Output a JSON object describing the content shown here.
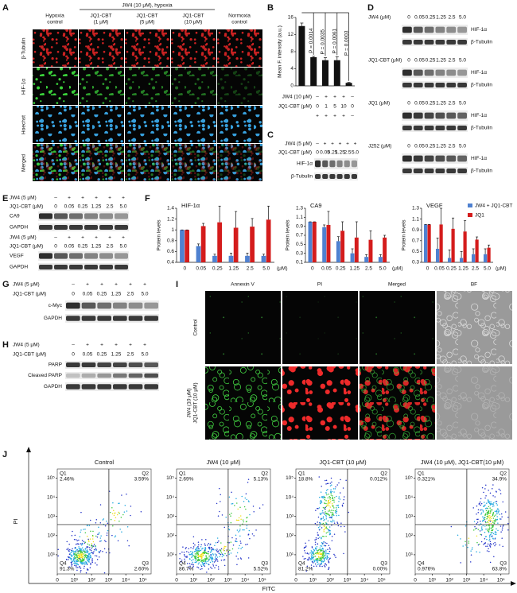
{
  "A": {
    "label": "A",
    "header": "JW4 (10 μM), hypoxia",
    "columns": [
      [
        "Hypoxia",
        "control"
      ],
      [
        "JQ1-CBT",
        "(1 μM)"
      ],
      [
        "JQ1-CBT",
        "(5 μM)"
      ],
      [
        "JQ1-CBT",
        "(10 μM)"
      ],
      [
        "Normoxia",
        "control"
      ]
    ],
    "rows": [
      "β-Tubulin",
      "HIF-1α",
      "Hoechst",
      "Merged"
    ]
  },
  "B": {
    "label": "B",
    "type": "bar",
    "ylabel": "Mean F. intensity (a.u.)",
    "ylim": [
      0,
      16
    ],
    "yticks": [
      0,
      4,
      8,
      12,
      16
    ],
    "values": [
      14,
      6.7,
      6,
      6,
      0.7
    ],
    "errors": [
      0.7,
      0.2,
      0.6,
      0.8,
      0.1
    ],
    "color": "#111111",
    "p_values": [
      "P = 0.0014",
      "P = 0.0035",
      "P = 0.0061",
      "P = 0.0003"
    ],
    "conditions": [
      {
        "name": "JW4 (10 μM)",
        "levels": [
          "–",
          "+",
          "+",
          "+",
          "–"
        ]
      },
      {
        "name": "JQ1-CBT (μM)",
        "levels": [
          "0",
          "1",
          "5",
          "10",
          "0"
        ]
      },
      {
        "levels": [
          "+",
          "+",
          "+",
          "+",
          "–"
        ]
      }
    ]
  },
  "C": {
    "label": "C",
    "treatments": [
      {
        "name": "JW4 (5 μM)",
        "levels": [
          "–",
          "+",
          "+",
          "+",
          "+",
          "+"
        ]
      },
      {
        "name": "JQ1-CBT (μM)",
        "levels": [
          "0",
          "0.05",
          "0.25",
          "1.25",
          "2.5",
          "5.0"
        ]
      }
    ],
    "bands": [
      "HIF-1α",
      "β-Tubulin"
    ]
  },
  "D": {
    "label": "D",
    "groups": [
      {
        "treatment": {
          "name": "JW4 (μM)",
          "levels": [
            "0",
            "0.05",
            "0.25",
            "1.25",
            "2.5",
            "5.0"
          ]
        },
        "bands": [
          "HIF-1α",
          "β-Tubulin"
        ]
      },
      {
        "treatment": {
          "name": "JQ1-CBT (μM)",
          "levels": [
            "0",
            "0.05",
            "0.25",
            "1.25",
            "2.5",
            "5.0"
          ]
        },
        "bands": [
          "HIF-1α",
          "β-Tubulin"
        ]
      },
      {
        "treatment": {
          "name": "JQ1 (μM)",
          "levels": [
            "0",
            "0.05",
            "0.25",
            "1.25",
            "2.5",
            "5.0"
          ]
        },
        "bands": [
          "HIF-1α",
          "β-Tubulin"
        ]
      },
      {
        "treatment": {
          "name": "J252 (μM)",
          "levels": [
            "0",
            "0.05",
            "0.25",
            "1.25",
            "2.5",
            "5.0"
          ]
        },
        "bands": [
          "HIF-1α",
          "β-Tubulin"
        ]
      }
    ]
  },
  "E": {
    "label": "E",
    "groups": [
      {
        "treatments": [
          {
            "name": "JW4 (5 μM)",
            "levels": [
              "–",
              "+",
              "+",
              "+",
              "+",
              "+"
            ]
          },
          {
            "name": "JQ1-CBT (μM)",
            "levels": [
              "0",
              "0.05",
              "0.25",
              "1.25",
              "2.5",
              "5.0"
            ]
          }
        ],
        "bands": [
          "CA9",
          "GAPDH"
        ]
      },
      {
        "treatments": [
          {
            "name": "JW4 (5 μM)",
            "levels": [
              "–",
              "+",
              "+",
              "+",
              "+",
              "+"
            ]
          },
          {
            "name": "JQ1-CBT (μM)",
            "levels": [
              "0",
              "0.05",
              "0.25",
              "1.25",
              "2.5",
              "5.0"
            ]
          }
        ],
        "bands": [
          "VEGF",
          "GAPDH"
        ]
      }
    ]
  },
  "F": {
    "label": "F",
    "type": "bar",
    "ylabel": "Protein levels",
    "categories": [
      "0",
      "0.05",
      "0.25",
      "1.25",
      "2.5",
      "5.0"
    ],
    "xunit": "(μM)",
    "series": [
      {
        "name": "JW4 + JQ1-CBT",
        "color": "#4f81d0"
      },
      {
        "name": "JQ1",
        "color": "#d41c1c"
      }
    ],
    "charts": [
      {
        "title": "HIF-1α",
        "ylim": [
          0.4,
          1.4
        ],
        "yticks": [
          0.4,
          0.6,
          0.8,
          1,
          1.2,
          1.4
        ],
        "values": [
          [
            1,
            0.7,
            0.52,
            0.52,
            0.52,
            0.52
          ],
          [
            1,
            1.07,
            1.14,
            1.04,
            1.06,
            1.19
          ]
        ],
        "errors": [
          [
            0,
            0.04,
            0.03,
            0.05,
            0.05,
            0.03
          ],
          [
            0,
            0.05,
            0.3,
            0.3,
            0.15,
            0.25
          ]
        ]
      },
      {
        "title": "CA9",
        "ylim": [
          0.1,
          1.3
        ],
        "yticks": [
          0.1,
          0.3,
          0.5,
          0.7,
          0.9,
          1.1,
          1.3
        ],
        "values": [
          [
            1,
            0.88,
            0.57,
            0.3,
            0.22,
            0.22
          ],
          [
            1,
            0.93,
            0.8,
            0.65,
            0.6,
            0.65
          ]
        ],
        "errors": [
          [
            0,
            0.05,
            0.1,
            0.1,
            0.05,
            0.05
          ],
          [
            0,
            0.3,
            0.2,
            0.35,
            0.2,
            0.05
          ]
        ]
      },
      {
        "title": "VEGF",
        "ylim": [
          0.3,
          1.3
        ],
        "yticks": [
          0.3,
          0.5,
          0.7,
          0.9,
          1.1,
          1.3
        ],
        "values": [
          [
            1,
            0.55,
            0.38,
            0.38,
            0.45,
            0.45
          ],
          [
            1,
            1.0,
            0.92,
            0.87,
            0.72,
            0.57
          ]
        ],
        "errors": [
          [
            0,
            0.2,
            0.15,
            0.12,
            0.1,
            0.1
          ],
          [
            0,
            0.3,
            0.2,
            0.2,
            0.05,
            0.05
          ]
        ]
      }
    ]
  },
  "G": {
    "label": "G",
    "treatments": [
      {
        "name": "JW4 (5 μM)",
        "levels": [
          "–",
          "+",
          "+",
          "+",
          "+",
          "+"
        ]
      },
      {
        "name": "JQ1-CBT (μM)",
        "levels": [
          "0",
          "0.05",
          "0.25",
          "1.25",
          "2.5",
          "5.0"
        ]
      }
    ],
    "bands": [
      "c-Myc",
      "GAPDH"
    ]
  },
  "H": {
    "label": "H",
    "treatments": [
      {
        "name": "JW4 (5 μM)",
        "levels": [
          "–",
          "+",
          "+",
          "+",
          "+",
          "+"
        ]
      },
      {
        "name": "JQ1-CBT (μM)",
        "levels": [
          "0",
          "0.05",
          "0.25",
          "1.25",
          "2.5",
          "5.0"
        ]
      }
    ],
    "bands": [
      "PARP",
      "Cleaved PARP",
      "GAPDH"
    ]
  },
  "I": {
    "label": "I",
    "columns": [
      "Annexin V",
      "PI",
      "Merged",
      "BF"
    ],
    "rows": [
      [
        "Control"
      ],
      [
        "JW4 (10 μM)",
        "JQ1-CBT (10 μM)"
      ]
    ]
  },
  "J": {
    "label": "J",
    "xlabel": "FITC",
    "ylabel": "PI",
    "log": true,
    "xlim": [
      1,
      300000
    ],
    "ylim": [
      1,
      300000
    ],
    "xticks": [
      0,
      {
        "value": 10,
        "label": "10¹"
      },
      {
        "value": 100,
        "label": "10²"
      },
      {
        "value": 1000,
        "label": "10³"
      },
      {
        "value": 10000,
        "label": "10⁴"
      },
      {
        "value": 100000,
        "label": "10⁵"
      }
    ],
    "yticks": [
      {
        "value": 10,
        "label": "10¹"
      },
      {
        "value": 100,
        "label": "10²"
      },
      {
        "value": 1000,
        "label": "10³"
      },
      {
        "value": 10000,
        "label": "10⁴"
      },
      {
        "value": 100000,
        "label": "10⁵"
      }
    ],
    "plots": [
      {
        "title": "Control",
        "quadrants": [
          {
            "name": "Q1",
            "value": "2.46%"
          },
          {
            "name": "Q2",
            "value": "3.59%"
          },
          {
            "name": "Q3",
            "value": "2.60%"
          },
          {
            "name": "Q4",
            "value": "91.3%"
          }
        ]
      },
      {
        "title": "JW4  (10 μM)",
        "quadrants": [
          {
            "name": "Q1",
            "value": "2.69%"
          },
          {
            "name": "Q2",
            "value": "5.13%"
          },
          {
            "name": "Q3",
            "value": "5.52%"
          },
          {
            "name": "Q4",
            "value": "86.7%"
          }
        ]
      },
      {
        "title": "JQ1-CBT (10 μM)",
        "quadrants": [
          {
            "name": "Q1",
            "value": "18.8%"
          },
          {
            "name": "Q2",
            "value": "0.012%"
          },
          {
            "name": "Q3",
            "value": "0.00%"
          },
          {
            "name": "Q4",
            "value": "81.2%"
          }
        ]
      },
      {
        "title": "JW4 (10 μM), JQ1-CBT(10 μM)",
        "quadrants": [
          {
            "name": "Q1",
            "value": "0.321%"
          },
          {
            "name": "Q2",
            "value": "34.9%"
          },
          {
            "name": "Q3",
            "value": "63.8%"
          },
          {
            "name": "Q4",
            "value": "0.976%"
          }
        ]
      }
    ]
  }
}
